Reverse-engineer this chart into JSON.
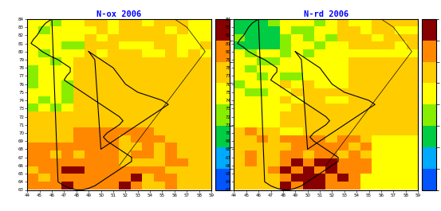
{
  "title_left": "N-ox 2006",
  "title_right": "N-rd 2006",
  "title_color": "#0000ff",
  "colorbar_levels": [
    10,
    20,
    50,
    100,
    200,
    500,
    1000
  ],
  "colorbar_colors_hex": [
    "#0055ff",
    "#00aaff",
    "#00cc44",
    "#88ee00",
    "#ffff00",
    "#ffcc00",
    "#ff8800",
    "#ff2200",
    "#880000"
  ],
  "colorbar_bounds": [
    0,
    10,
    20,
    50,
    100,
    200,
    500,
    1000,
    1200
  ],
  "x_min": 44,
  "x_max": 59,
  "y_min": 63,
  "y_max": 84,
  "bg_color": "#ffffff",
  "grid_color": "#000000",
  "grid_linewidth": 0.25,
  "boundary_linewidth": 0.8,
  "tick_fontsize": 4.0,
  "title_fontsize": 7.5
}
